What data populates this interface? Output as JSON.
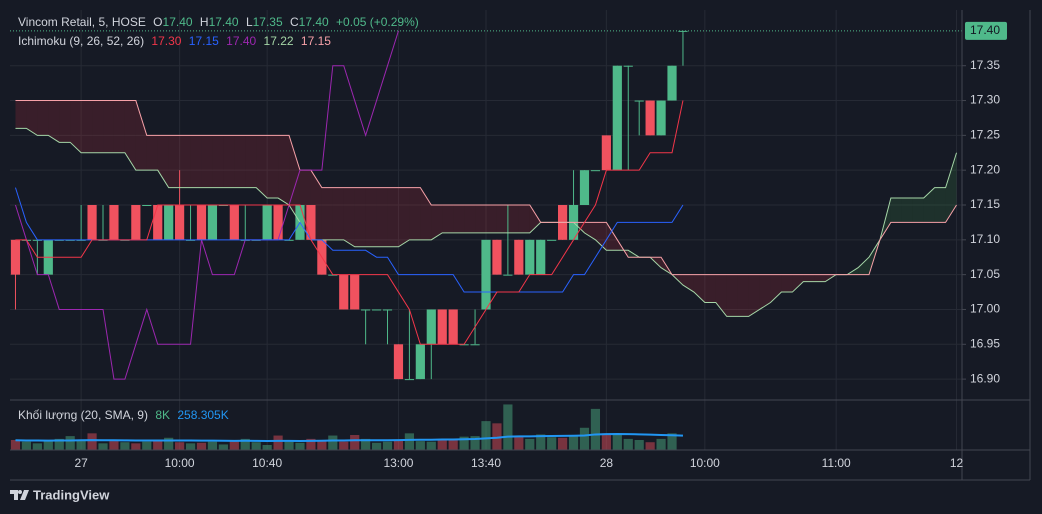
{
  "chart_data": {
    "type": "candlestick",
    "legend": {
      "symbol": "Vincom Retail, 5, HOSE",
      "open_label": "O",
      "open": "17.40",
      "high_label": "H",
      "high": "17.40",
      "low_label": "L",
      "low": "17.35",
      "close_label": "C",
      "close": "17.40",
      "change": "+0.05 (+0.29%)"
    },
    "ichimoku_legend": {
      "label": "Ichimoku (9, 26, 52, 26)",
      "tenkan": "17.30",
      "kijun": "17.15",
      "chikou": "17.40",
      "span_a": "17.22",
      "span_b": "17.15"
    },
    "volume_legend": {
      "label": "Khối lượng (20, SMA, 9)",
      "volume": "8K",
      "sma": "258.305K"
    },
    "branding": "TradingView",
    "categories": [
      null,
      null,
      null,
      null,
      null,
      null,
      "27",
      null,
      null,
      null,
      null,
      null,
      null,
      null,
      null,
      "10:00",
      null,
      null,
      null,
      null,
      null,
      null,
      null,
      "10:40",
      null,
      null,
      null,
      null,
      null,
      null,
      null,
      null,
      null,
      null,
      null,
      "13:00",
      null,
      null,
      null,
      null,
      null,
      null,
      null,
      "13:40",
      null,
      null,
      null,
      null,
      null,
      null,
      null,
      null,
      null,
      null,
      "28",
      null,
      null,
      null,
      null,
      null,
      null,
      null,
      null,
      "10:00",
      null,
      null,
      null,
      null,
      null,
      null,
      null,
      null,
      null,
      null,
      null,
      "11:00",
      null,
      null,
      null,
      null,
      null,
      null,
      null,
      null,
      null,
      null,
      "12"
    ],
    "open": [
      17.1,
      17.1,
      17.1,
      17.05,
      17.1,
      17.1,
      17.1,
      17.15,
      17.1,
      17.15,
      17.1,
      17.15,
      17.15,
      17.15,
      17.1,
      17.15,
      17.1,
      17.15,
      17.1,
      17.15,
      17.15,
      17.1,
      17.1,
      17.1,
      17.15,
      17.1,
      17.1,
      17.15,
      17.1,
      17.05,
      17.05,
      17.05,
      17.0,
      17.0,
      17.0,
      16.95,
      16.9,
      16.9,
      16.95,
      17.0,
      17.0,
      16.95,
      16.95,
      17.0,
      17.1,
      17.05,
      17.1,
      17.05,
      17.05,
      17.1,
      17.15,
      17.1,
      17.15,
      17.2,
      17.25,
      17.2,
      17.35,
      17.3,
      17.3,
      17.25,
      17.3,
      17.4,
      null,
      null,
      null,
      null,
      null,
      null,
      null,
      null,
      null,
      null,
      null,
      null,
      null,
      null,
      null,
      null,
      null,
      null,
      null,
      null,
      null,
      null,
      null,
      null,
      null
    ],
    "high": [
      17.1,
      17.1,
      17.1,
      17.1,
      17.1,
      17.1,
      17.15,
      17.15,
      17.15,
      17.15,
      17.1,
      17.15,
      17.15,
      17.15,
      17.15,
      17.2,
      17.15,
      17.15,
      17.15,
      17.15,
      17.15,
      17.15,
      17.1,
      17.15,
      17.15,
      17.1,
      17.15,
      17.15,
      17.1,
      17.05,
      17.05,
      17.05,
      17.0,
      17.0,
      17.0,
      16.95,
      17.0,
      16.95,
      17.0,
      17.0,
      17.0,
      16.95,
      17.0,
      17.1,
      17.1,
      17.15,
      17.1,
      17.1,
      17.1,
      17.1,
      17.15,
      17.2,
      17.2,
      17.2,
      17.25,
      17.35,
      17.35,
      17.3,
      17.3,
      17.3,
      17.35,
      17.4,
      null,
      null,
      null,
      null,
      null,
      null,
      null,
      null,
      null,
      null,
      null,
      null,
      null,
      null,
      null,
      null,
      null,
      null,
      null,
      null,
      null,
      null,
      null,
      null,
      null
    ],
    "low": [
      17.0,
      17.1,
      17.05,
      17.05,
      17.1,
      17.1,
      17.1,
      17.1,
      17.1,
      17.1,
      17.1,
      17.1,
      17.15,
      17.1,
      17.1,
      17.1,
      17.1,
      17.1,
      17.1,
      17.15,
      17.1,
      17.1,
      17.1,
      17.1,
      17.1,
      17.1,
      17.1,
      17.1,
      17.05,
      17.05,
      17.0,
      17.0,
      16.95,
      17.0,
      16.95,
      16.9,
      16.9,
      16.9,
      16.9,
      16.95,
      16.95,
      16.95,
      16.95,
      17.0,
      17.05,
      17.05,
      17.05,
      17.05,
      17.05,
      17.1,
      17.1,
      17.1,
      17.15,
      17.2,
      17.2,
      17.2,
      17.2,
      17.25,
      17.25,
      17.25,
      17.3,
      17.35,
      null,
      null,
      null,
      null,
      null,
      null,
      null,
      null,
      null,
      null,
      null,
      null,
      null,
      null,
      null,
      null,
      null,
      null,
      null,
      null,
      null,
      null,
      null,
      null,
      null
    ],
    "close": [
      17.05,
      17.1,
      17.1,
      17.1,
      17.1,
      17.1,
      17.1,
      17.1,
      17.1,
      17.1,
      17.1,
      17.1,
      17.15,
      17.1,
      17.15,
      17.1,
      17.1,
      17.1,
      17.15,
      17.15,
      17.1,
      17.1,
      17.1,
      17.15,
      17.1,
      17.1,
      17.15,
      17.1,
      17.05,
      17.05,
      17.0,
      17.0,
      17.0,
      17.0,
      17.0,
      16.9,
      16.9,
      16.95,
      17.0,
      16.95,
      16.95,
      16.95,
      16.95,
      17.1,
      17.05,
      17.05,
      17.05,
      17.1,
      17.1,
      17.1,
      17.1,
      17.15,
      17.2,
      17.2,
      17.2,
      17.35,
      17.35,
      17.3,
      17.25,
      17.3,
      17.35,
      17.4,
      null,
      null,
      null,
      null,
      null,
      null,
      null,
      null,
      null,
      null,
      null,
      null,
      null,
      null,
      null,
      null,
      null,
      null,
      null,
      null,
      null,
      null,
      null,
      null,
      null
    ],
    "up_color": "#4fb98a",
    "down_color": "#f0525f",
    "tenkan": {
      "color": "#f2364a",
      "values": [
        17.1,
        17.1,
        17.075,
        17.075,
        17.075,
        17.075,
        17.075,
        17.1,
        17.1,
        17.1,
        17.1,
        17.1,
        17.1,
        17.15,
        17.15,
        17.15,
        17.15,
        17.15,
        17.15,
        17.15,
        17.15,
        17.15,
        17.15,
        17.15,
        17.15,
        17.15,
        17.15,
        17.1,
        17.075,
        17.05,
        17.05,
        17.05,
        17.05,
        17.05,
        17.05,
        17.025,
        17.0,
        16.95,
        16.95,
        16.95,
        16.95,
        16.95,
        16.975,
        17.0,
        17.025,
        17.025,
        17.025,
        17.05,
        17.05,
        17.05,
        17.075,
        17.1,
        17.125,
        17.15,
        17.2,
        17.2,
        17.2,
        17.2,
        17.225,
        17.225,
        17.225,
        17.3,
        null,
        null,
        null,
        null,
        null,
        null,
        null,
        null,
        null,
        null,
        null,
        null,
        null,
        null,
        null,
        null,
        null,
        null,
        null,
        null,
        null,
        null,
        null,
        null,
        null
      ]
    },
    "kijun": {
      "color": "#2962ff",
      "values": [
        17.175,
        17.125,
        17.1,
        17.1,
        17.1,
        17.1,
        17.1,
        17.1,
        17.1,
        17.1,
        17.1,
        17.1,
        17.1,
        17.1,
        17.1,
        17.1,
        17.1,
        17.1,
        17.1,
        17.1,
        17.1,
        17.1,
        17.1,
        17.1,
        17.1,
        17.1,
        17.125,
        17.1,
        17.1,
        17.085,
        17.085,
        17.085,
        17.085,
        17.075,
        17.075,
        17.05,
        17.05,
        17.05,
        17.05,
        17.05,
        17.05,
        17.025,
        17.025,
        17.025,
        17.025,
        17.025,
        17.025,
        17.025,
        17.025,
        17.025,
        17.025,
        17.05,
        17.05,
        17.075,
        17.1,
        17.125,
        17.125,
        17.125,
        17.125,
        17.125,
        17.125,
        17.15,
        null,
        null,
        null,
        null,
        null,
        null,
        null,
        null,
        null,
        null,
        null,
        null,
        null,
        null,
        null,
        null,
        null,
        null,
        null,
        null,
        null,
        null,
        null,
        null,
        null
      ]
    },
    "chikou": {
      "color": "#9c27b0",
      "values": [
        17.15,
        17.1,
        17.05,
        17.05,
        17.0,
        17.0,
        17.0,
        17.0,
        17.0,
        16.9,
        16.9,
        16.95,
        17.0,
        16.95,
        16.95,
        16.95,
        16.95,
        17.1,
        17.05,
        17.05,
        17.05,
        17.1,
        17.1,
        17.1,
        17.1,
        17.15,
        17.2,
        17.2,
        17.2,
        17.35,
        17.35,
        17.3,
        17.25,
        17.3,
        17.35,
        17.4,
        null,
        null,
        null,
        null,
        null,
        null,
        null,
        null,
        null,
        null,
        null,
        null,
        null,
        null,
        null,
        null,
        null,
        null,
        null,
        null,
        null,
        null,
        null,
        null,
        null,
        null,
        null,
        null,
        null,
        null,
        null,
        null,
        null,
        null,
        null,
        null,
        null,
        null,
        null,
        null,
        null,
        null,
        null,
        null,
        null,
        null,
        null,
        null,
        null,
        null,
        null
      ]
    },
    "span_a": {
      "color": "#a5d6a7",
      "values": [
        17.26,
        17.26,
        17.25,
        17.25,
        17.24,
        17.24,
        17.225,
        17.225,
        17.225,
        17.225,
        17.225,
        17.2,
        17.2,
        17.2,
        17.175,
        17.175,
        17.175,
        17.175,
        17.175,
        17.175,
        17.175,
        17.175,
        17.175,
        17.16,
        17.16,
        17.15,
        17.125,
        17.1,
        17.1,
        17.1,
        17.1,
        17.09,
        17.09,
        17.09,
        17.09,
        17.09,
        17.1,
        17.1,
        17.1,
        17.11,
        17.11,
        17.11,
        17.11,
        17.11,
        17.11,
        17.11,
        17.11,
        17.11,
        17.125,
        17.125,
        17.125,
        17.125,
        17.11,
        17.1,
        17.085,
        17.085,
        17.085,
        17.075,
        17.075,
        17.06,
        17.05,
        17.035,
        17.025,
        17.01,
        17.01,
        16.99,
        16.99,
        16.99,
        17.0,
        17.01,
        17.025,
        17.025,
        17.04,
        17.04,
        17.04,
        17.05,
        17.05,
        17.06,
        17.075,
        17.1,
        17.16,
        17.16,
        17.16,
        17.16,
        17.175,
        17.175,
        17.225
      ]
    },
    "span_b": {
      "color": "#f7a1a8",
      "values": [
        17.3,
        17.3,
        17.3,
        17.3,
        17.3,
        17.3,
        17.3,
        17.3,
        17.3,
        17.3,
        17.3,
        17.3,
        17.25,
        17.25,
        17.25,
        17.25,
        17.25,
        17.25,
        17.25,
        17.25,
        17.25,
        17.25,
        17.25,
        17.25,
        17.25,
        17.25,
        17.2,
        17.2,
        17.175,
        17.175,
        17.175,
        17.175,
        17.175,
        17.175,
        17.175,
        17.175,
        17.175,
        17.175,
        17.15,
        17.15,
        17.15,
        17.15,
        17.15,
        17.15,
        17.15,
        17.15,
        17.15,
        17.15,
        17.125,
        17.125,
        17.125,
        17.125,
        17.125,
        17.125,
        17.125,
        17.1,
        17.075,
        17.075,
        17.075,
        17.075,
        17.05,
        17.05,
        17.05,
        17.05,
        17.05,
        17.05,
        17.05,
        17.05,
        17.05,
        17.05,
        17.05,
        17.05,
        17.05,
        17.05,
        17.05,
        17.05,
        17.05,
        17.05,
        17.05,
        17.1,
        17.125,
        17.125,
        17.125,
        17.125,
        17.125,
        17.125,
        17.15
      ]
    },
    "cloud_colors": {
      "above": "rgba(76,175,80,0.16)",
      "below": "rgba(242,54,69,0.16)"
    },
    "ylim": [
      16.87,
      17.43
    ],
    "yticks": [
      {
        "value": 16.9,
        "label": "16.90"
      },
      16.95,
      {
        "value": 17.0,
        "label": "17.00"
      },
      17.05,
      {
        "value": 17.1,
        "label": "17.10"
      },
      17.15,
      {
        "value": 17.2,
        "label": "17.20"
      },
      17.25,
      {
        "value": 17.3,
        "label": "17.30"
      },
      17.35
    ],
    "last_price": {
      "value": 17.4,
      "label": "17.40",
      "color": "#4fb98a"
    },
    "grid": true,
    "volume": {
      "ylim": [
        0,
        900
      ],
      "up_color": "rgba(79,185,138,0.45)",
      "down_color": "rgba(240,82,95,0.45)",
      "values": [
        180,
        150,
        120,
        160,
        200,
        250,
        180,
        300,
        120,
        160,
        140,
        120,
        150,
        170,
        220,
        140,
        120,
        130,
        150,
        100,
        170,
        200,
        140,
        90,
        260,
        150,
        130,
        200,
        180,
        260,
        150,
        270,
        200,
        130,
        150,
        180,
        300,
        160,
        150,
        200,
        180,
        240,
        250,
        520,
        480,
        820,
        260,
        200,
        280,
        230,
        220,
        270,
        400,
        740,
        300,
        280,
        200,
        180,
        140,
        200,
        300,
        8,
        null,
        null,
        null,
        null,
        null,
        null,
        null,
        null,
        null,
        null,
        null,
        null,
        null,
        null,
        null,
        null,
        null,
        null,
        null,
        null,
        null,
        null,
        null,
        null,
        null
      ],
      "sma": {
        "color": "#2196f3",
        "values": [
          175,
          172,
          170,
          168,
          170,
          172,
          175,
          178,
          176,
          175,
          174,
          172,
          170,
          170,
          172,
          171,
          170,
          169,
          168,
          166,
          165,
          166,
          165,
          163,
          165,
          164,
          163,
          165,
          166,
          170,
          172,
          175,
          176,
          175,
          176,
          178,
          182,
          184,
          185,
          188,
          190,
          194,
          198,
          210,
          220,
          240,
          245,
          246,
          250,
          252,
          254,
          256,
          262,
          280,
          285,
          288,
          286,
          282,
          276,
          270,
          265,
          258.305,
          null,
          null,
          null,
          null,
          null,
          null,
          null,
          null,
          null,
          null,
          null,
          null,
          null,
          null,
          null,
          null,
          null,
          null,
          null,
          null,
          null,
          null,
          null,
          null,
          null
        ]
      }
    }
  }
}
